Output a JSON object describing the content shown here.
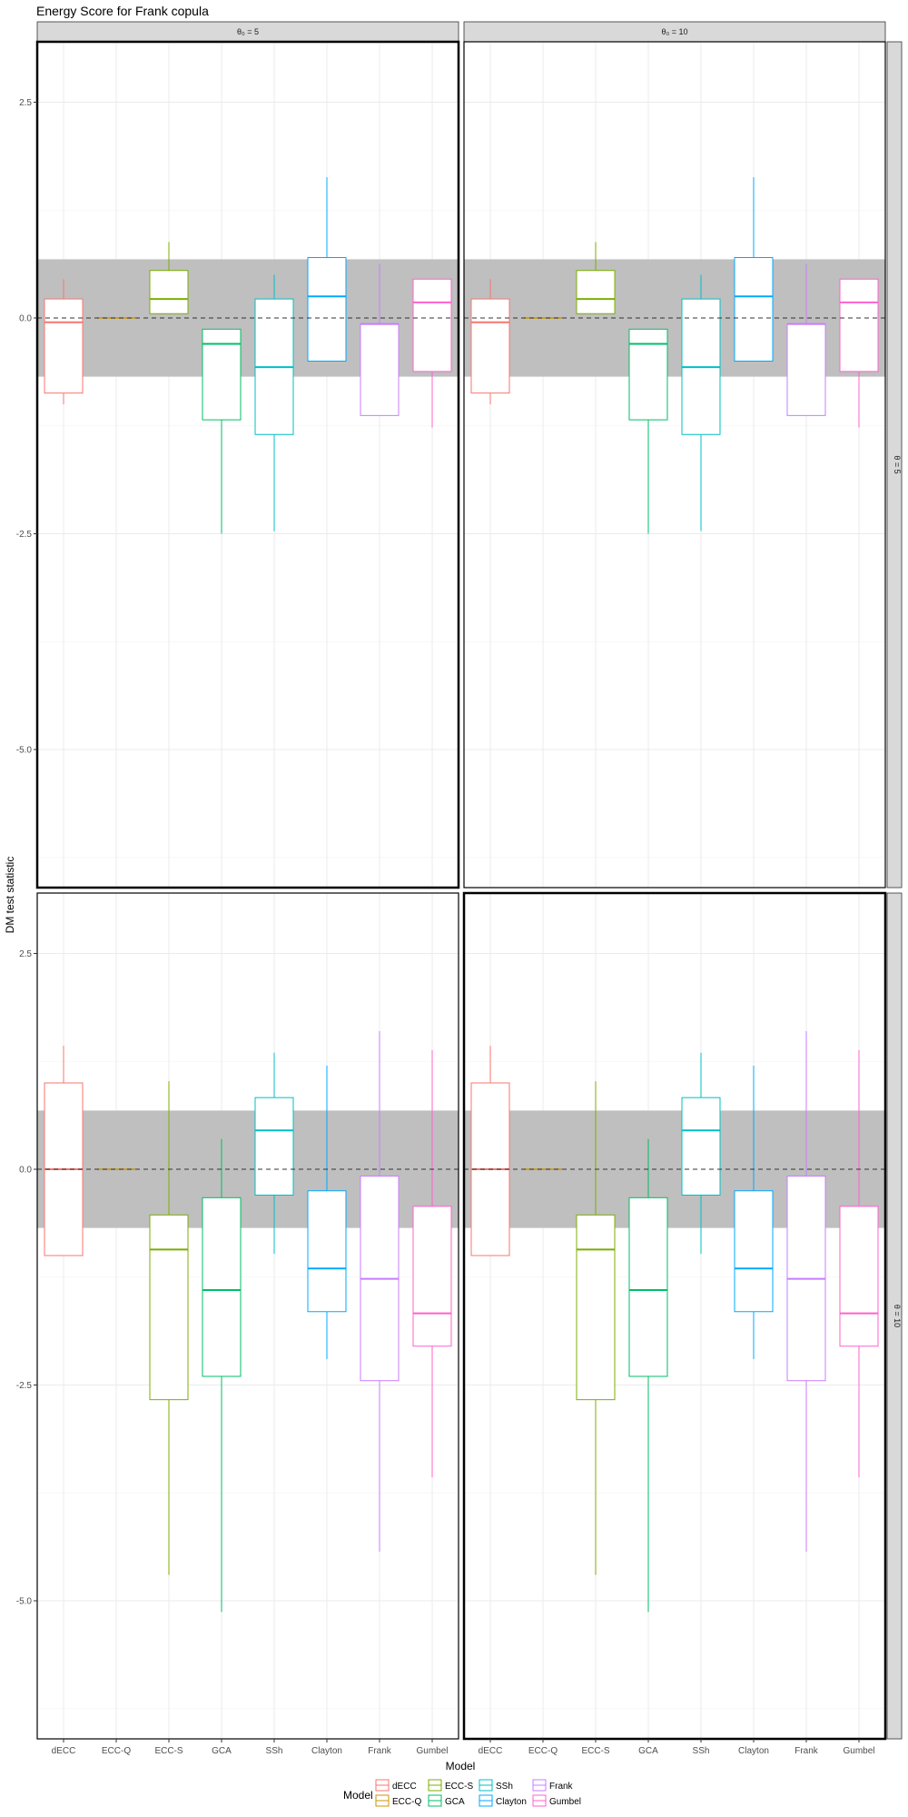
{
  "chart_data": {
    "type": "boxplot",
    "title": "Energy Score for Frank copula",
    "xlabel": "Model",
    "ylabel": "DM test statistic",
    "ylim": [
      -6.6,
      3.2
    ],
    "yticks": [
      -5.0,
      -2.5,
      0.0,
      2.5
    ],
    "ytick_labels": [
      "-5.0",
      "-2.5",
      "0.0",
      "2.5"
    ],
    "reference_line": 0,
    "band": [
      -0.68,
      0.68
    ],
    "grid": true,
    "legend_placement": "bottom",
    "legend_title": "Model",
    "categories": [
      "dECC",
      "ECC-Q",
      "ECC-S",
      "GCA",
      "SSh",
      "Clayton",
      "Frank",
      "Gumbel"
    ],
    "colors": [
      "#F8766D",
      "#CD9600",
      "#7CAE00",
      "#00BE67",
      "#00BFC4",
      "#00A9FF",
      "#C77CFF",
      "#FF61CC"
    ],
    "column_strips": [
      "θ₀ = 5",
      "θ₀ = 10"
    ],
    "row_strips": [
      "θ = 5",
      "θ = 10"
    ],
    "panels": [
      {
        "col": 0,
        "row": 0,
        "boxes": [
          {
            "min": -1.0,
            "q1": -0.87,
            "median": -0.05,
            "q3": 0.22,
            "max": 0.45
          },
          {
            "min": 0.0,
            "q1": 0.0,
            "median": 0.0,
            "q3": 0.0,
            "max": 0.0
          },
          {
            "min": 0.05,
            "q1": 0.05,
            "median": 0.22,
            "q3": 0.55,
            "max": 0.88
          },
          {
            "min": -2.5,
            "q1": -1.18,
            "median": -0.3,
            "q3": -0.13,
            "max": -0.13
          },
          {
            "min": -2.47,
            "q1": -1.35,
            "median": -0.57,
            "q3": 0.22,
            "max": 0.5
          },
          {
            "min": -0.5,
            "q1": -0.5,
            "median": 0.25,
            "q3": 0.7,
            "max": 1.63
          },
          {
            "min": -1.13,
            "q1": -1.13,
            "median": -0.07,
            "q3": -0.07,
            "max": 0.63
          },
          {
            "min": -1.27,
            "q1": -0.62,
            "median": 0.18,
            "q3": 0.45,
            "max": 0.45
          }
        ]
      },
      {
        "col": 1,
        "row": 0,
        "boxes": [
          {
            "min": -1.0,
            "q1": -0.87,
            "median": -0.05,
            "q3": 0.22,
            "max": 0.45
          },
          {
            "min": 0.0,
            "q1": 0.0,
            "median": 0.0,
            "q3": 0.0,
            "max": 0.0
          },
          {
            "min": 0.05,
            "q1": 0.05,
            "median": 0.22,
            "q3": 0.55,
            "max": 0.88
          },
          {
            "min": -2.5,
            "q1": -1.18,
            "median": -0.3,
            "q3": -0.13,
            "max": -0.13
          },
          {
            "min": -2.47,
            "q1": -1.35,
            "median": -0.57,
            "q3": 0.22,
            "max": 0.5
          },
          {
            "min": -0.5,
            "q1": -0.5,
            "median": 0.25,
            "q3": 0.7,
            "max": 1.63
          },
          {
            "min": -1.13,
            "q1": -1.13,
            "median": -0.07,
            "q3": -0.07,
            "max": 0.63
          },
          {
            "min": -1.27,
            "q1": -0.62,
            "median": 0.18,
            "q3": 0.45,
            "max": 0.45
          }
        ]
      },
      {
        "col": 0,
        "row": 1,
        "boxes": [
          {
            "min": -1.0,
            "q1": -1.0,
            "median": 0.0,
            "q3": 1.0,
            "max": 1.43
          },
          {
            "min": 0.0,
            "q1": 0.0,
            "median": 0.0,
            "q3": 0.0,
            "max": 0.0
          },
          {
            "min": -4.7,
            "q1": -2.67,
            "median": -0.93,
            "q3": -0.53,
            "max": 1.02
          },
          {
            "min": -5.13,
            "q1": -2.4,
            "median": -1.4,
            "q3": -0.33,
            "max": 0.35
          },
          {
            "min": -0.98,
            "q1": -0.3,
            "median": 0.45,
            "q3": 0.83,
            "max": 1.35
          },
          {
            "min": -2.2,
            "q1": -1.65,
            "median": -1.15,
            "q3": -0.25,
            "max": 1.2
          },
          {
            "min": -4.43,
            "q1": -2.45,
            "median": -1.27,
            "q3": -0.08,
            "max": 1.6
          },
          {
            "min": -3.57,
            "q1": -2.05,
            "median": -1.67,
            "q3": -0.43,
            "max": 1.38
          }
        ]
      },
      {
        "col": 1,
        "row": 1,
        "boxes": [
          {
            "min": -1.0,
            "q1": -1.0,
            "median": 0.0,
            "q3": 1.0,
            "max": 1.43
          },
          {
            "min": 0.0,
            "q1": 0.0,
            "median": 0.0,
            "q3": 0.0,
            "max": 0.0
          },
          {
            "min": -4.7,
            "q1": -2.67,
            "median": -0.93,
            "q3": -0.53,
            "max": 1.02
          },
          {
            "min": -5.13,
            "q1": -2.4,
            "median": -1.4,
            "q3": -0.33,
            "max": 0.35
          },
          {
            "min": -0.98,
            "q1": -0.3,
            "median": 0.45,
            "q3": 0.83,
            "max": 1.35
          },
          {
            "min": -2.2,
            "q1": -1.65,
            "median": -1.15,
            "q3": -0.25,
            "max": 1.2
          },
          {
            "min": -4.43,
            "q1": -2.45,
            "median": -1.27,
            "q3": -0.08,
            "max": 1.6
          },
          {
            "min": -3.57,
            "q1": -2.05,
            "median": -1.67,
            "q3": -0.43,
            "max": 1.38
          }
        ]
      }
    ]
  }
}
